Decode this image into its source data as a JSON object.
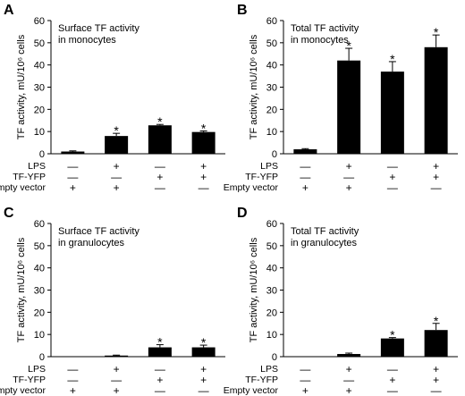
{
  "chart_data": [
    {
      "type": "bar",
      "panel": "A",
      "title": [
        "Surface TF activity",
        "in monocytes"
      ],
      "ylabel": "TF activity, mU/10⁶ cells",
      "ylim": [
        0,
        60
      ],
      "yticks": [
        0,
        10,
        20,
        30,
        40,
        50,
        60
      ],
      "categories": [
        "Empty vector",
        "LPS + Empty vector",
        "TF-YFP",
        "LPS + TF-YFP"
      ],
      "values": [
        1,
        8,
        12.8,
        9.8
      ],
      "errors": [
        0.3,
        1.2,
        0.4,
        0.5
      ],
      "significant": [
        false,
        true,
        true,
        true
      ],
      "conditions": [
        {
          "label": "LPS",
          "signs": [
            "—",
            "+",
            "—",
            "+"
          ]
        },
        {
          "label": "TF-YFP",
          "signs": [
            "—",
            "—",
            "+",
            "+"
          ]
        },
        {
          "label": "Empty vector",
          "signs": [
            "+",
            "+",
            "—",
            "—"
          ]
        }
      ]
    },
    {
      "type": "bar",
      "panel": "B",
      "title": [
        "Total TF activity",
        "in monocytes"
      ],
      "ylabel": "TF activity, mU/10⁶ cells",
      "ylim": [
        0,
        60
      ],
      "yticks": [
        0,
        10,
        20,
        30,
        40,
        50,
        60
      ],
      "categories": [
        "Empty vector",
        "LPS + Empty vector",
        "TF-YFP",
        "LPS + TF-YFP"
      ],
      "values": [
        2,
        42,
        37,
        48
      ],
      "errors": [
        0.3,
        5.5,
        4.5,
        5.5
      ],
      "significant": [
        false,
        true,
        true,
        true
      ],
      "conditions": [
        {
          "label": "LPS",
          "signs": [
            "—",
            "+",
            "—",
            "+"
          ]
        },
        {
          "label": "TF-YFP",
          "signs": [
            "—",
            "—",
            "+",
            "+"
          ]
        },
        {
          "label": "Empty vector",
          "signs": [
            "+",
            "+",
            "—",
            "—"
          ]
        }
      ]
    },
    {
      "type": "bar",
      "panel": "C",
      "title": [
        "Surface TF activity",
        "in granulocytes"
      ],
      "ylabel": "TF activity, mU/10⁶ cells",
      "ylim": [
        0,
        60
      ],
      "yticks": [
        0,
        10,
        20,
        30,
        40,
        50,
        60
      ],
      "categories": [
        "Empty vector",
        "LPS + Empty vector",
        "TF-YFP",
        "LPS + TF-YFP"
      ],
      "values": [
        0,
        0.5,
        4.2,
        4.2
      ],
      "errors": [
        0,
        0.2,
        1.2,
        1
      ],
      "significant": [
        false,
        false,
        true,
        true
      ],
      "conditions": [
        {
          "label": "LPS",
          "signs": [
            "—",
            "+",
            "—",
            "+"
          ]
        },
        {
          "label": "TF-YFP",
          "signs": [
            "—",
            "—",
            "+",
            "+"
          ]
        },
        {
          "label": "Empty vector",
          "signs": [
            "+",
            "+",
            "—",
            "—"
          ]
        }
      ]
    },
    {
      "type": "bar",
      "panel": "D",
      "title": [
        "Total TF activity",
        "in granulocytes"
      ],
      "ylabel": "TF activity, mU/10⁶ cells",
      "ylim": [
        0,
        60
      ],
      "yticks": [
        0,
        10,
        20,
        30,
        40,
        50,
        60
      ],
      "categories": [
        "Empty vector",
        "LPS + Empty vector",
        "TF-YFP",
        "LPS + TF-YFP"
      ],
      "values": [
        0,
        1.2,
        8.2,
        12
      ],
      "errors": [
        0,
        0.4,
        0.4,
        3
      ],
      "significant": [
        false,
        false,
        true,
        true
      ],
      "conditions": [
        {
          "label": "LPS",
          "signs": [
            "—",
            "+",
            "—",
            "+"
          ]
        },
        {
          "label": "TF-YFP",
          "signs": [
            "—",
            "—",
            "+",
            "+"
          ]
        },
        {
          "label": "Empty vector",
          "signs": [
            "+",
            "+",
            "—",
            "—"
          ]
        }
      ]
    }
  ]
}
